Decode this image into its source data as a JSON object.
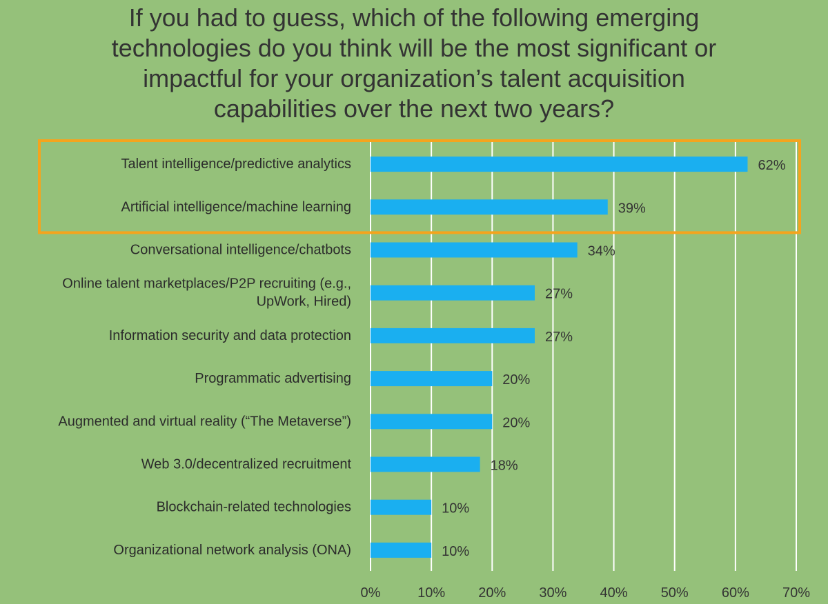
{
  "chart_data": {
    "type": "bar",
    "orientation": "horizontal",
    "title": [
      "If you had to guess, which of the following emerging",
      "technologies do you think will be the most significant or",
      "impactful for your organization’s talent acquisition",
      "capabilities over the next two years?"
    ],
    "categories": [
      [
        "Talent intelligence/predictive analytics"
      ],
      [
        "Artificial intelligence/machine learning"
      ],
      [
        "Conversational intelligence/chatbots"
      ],
      [
        "Online talent marketplaces/P2P recruiting (e.g.,",
        "UpWork, Hired)"
      ],
      [
        "Information security and data protection"
      ],
      [
        "Programmatic advertising"
      ],
      [
        "Augmented and virtual reality (“The Metaverse”)"
      ],
      [
        "Web 3.0/decentralized recruitment"
      ],
      [
        "Blockchain-related technologies"
      ],
      [
        "Organizational network analysis (ONA)"
      ]
    ],
    "values": [
      62,
      39,
      34,
      27,
      27,
      20,
      20,
      18,
      10,
      10
    ],
    "value_labels": [
      "62%",
      "39%",
      "34%",
      "27%",
      "27%",
      "20%",
      "20%",
      "18%",
      "10%",
      "10%"
    ],
    "xlim": [
      0,
      70
    ],
    "x_ticks": [
      0,
      10,
      20,
      30,
      40,
      50,
      60,
      70
    ],
    "x_tick_labels": [
      "0%",
      "10%",
      "20%",
      "30%",
      "40%",
      "50%",
      "60%",
      "70%"
    ],
    "grid": "vertical",
    "highlight": {
      "categories": [
        0,
        1
      ]
    },
    "colors": {
      "background": "#95c17a",
      "bar": "#1aaff0",
      "gridline": "#ffffff",
      "highlight_box": "#f5a41d",
      "text": "#333333"
    }
  }
}
